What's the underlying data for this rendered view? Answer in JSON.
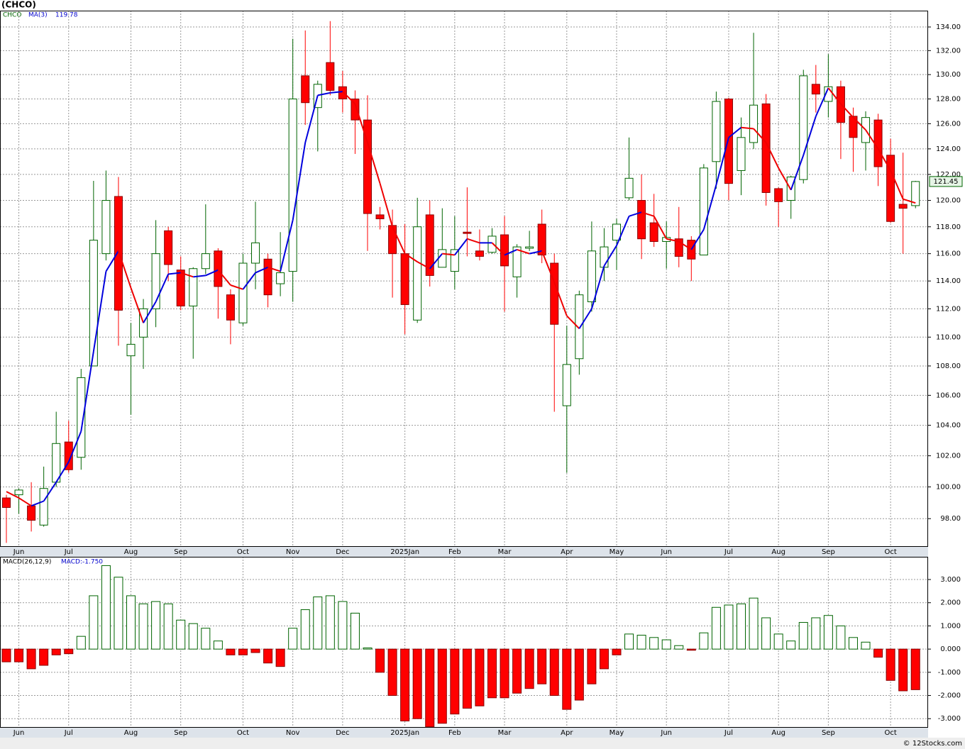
{
  "chart_data": [
    {
      "type": "candlestick",
      "title": "(CHCO)",
      "symbol": "CHCO",
      "ma_name": "MA(3)",
      "ma_value_label": "119.78",
      "last_label": "121.45",
      "categories": [
        null,
        "Jun",
        null,
        null,
        null,
        "Jul",
        null,
        null,
        null,
        null,
        "Aug",
        null,
        null,
        null,
        "Sep",
        null,
        null,
        null,
        null,
        "Oct",
        null,
        null,
        null,
        "Nov",
        null,
        null,
        null,
        "Dec",
        null,
        null,
        null,
        null,
        "2025Jan",
        null,
        null,
        null,
        "Feb",
        null,
        null,
        null,
        "Mar",
        null,
        null,
        null,
        null,
        "Apr",
        null,
        null,
        null,
        "May",
        null,
        null,
        null,
        "Jun",
        null,
        null,
        null,
        null,
        "Jul",
        null,
        null,
        null,
        "Aug",
        null,
        null,
        null,
        "Sep",
        null,
        null,
        null,
        null,
        "Oct",
        null,
        null
      ],
      "open": [
        99.3,
        99.5,
        98.8,
        97.6,
        100.3,
        102.9,
        101.9,
        108.0,
        116.0,
        120.3,
        108.7,
        110.0,
        112.0,
        117.7,
        114.8,
        112.2,
        114.9,
        116.2,
        113.0,
        111.0,
        115.3,
        115.6,
        113.8,
        114.7,
        129.9,
        127.3,
        131.0,
        129.0,
        128.0,
        126.3,
        118.9,
        118.1,
        116.0,
        111.2,
        118.9,
        115.0,
        114.7,
        117.6,
        116.2,
        116.1,
        117.4,
        114.3,
        116.4,
        118.2,
        115.3,
        105.3,
        108.5,
        112.5,
        115.0,
        117.0,
        120.2,
        120.0,
        118.3,
        116.9,
        117.1,
        117.0,
        115.9,
        123.0,
        128.0,
        122.3,
        124.5,
        127.6,
        120.9,
        120.0,
        121.6,
        129.2,
        127.8,
        129.0,
        126.6,
        124.5,
        126.3,
        123.5,
        119.7,
        119.6
      ],
      "high": [
        99.5,
        99.9,
        100.3,
        101.3,
        104.9,
        104.3,
        107.8,
        121.5,
        122.3,
        121.8,
        111.0,
        112.7,
        118.5,
        118.0,
        115.8,
        115.0,
        119.7,
        116.4,
        113.4,
        116.0,
        119.9,
        116.0,
        117.6,
        133.0,
        133.7,
        129.5,
        134.5,
        130.3,
        128.7,
        128.3,
        119.5,
        119.3,
        118.2,
        120.2,
        120.0,
        119.4,
        118.8,
        121.0,
        117.8,
        117.9,
        118.8,
        116.7,
        117.7,
        119.3,
        116.0,
        110.8,
        113.3,
        118.4,
        117.9,
        118.6,
        124.9,
        122.0,
        120.5,
        118.4,
        119.5,
        117.3,
        122.8,
        128.6,
        128.1,
        126.5,
        133.5,
        128.4,
        121.0,
        121.9,
        130.4,
        130.8,
        131.7,
        129.5,
        127.3,
        127.0,
        126.8,
        124.8,
        123.7,
        121.5
      ],
      "low": [
        96.5,
        98.3,
        97.2,
        97.5,
        100.0,
        100.9,
        101.1,
        108.0,
        115.5,
        109.4,
        104.7,
        107.8,
        110.7,
        114.0,
        111.9,
        108.5,
        114.5,
        111.3,
        109.5,
        110.8,
        113.4,
        112.1,
        112.9,
        112.5,
        125.9,
        123.8,
        128.3,
        126.9,
        123.6,
        116.2,
        117.8,
        112.8,
        110.2,
        111.0,
        113.6,
        115.0,
        113.4,
        115.8,
        115.5,
        116.0,
        111.8,
        112.8,
        116.2,
        115.3,
        104.9,
        100.9,
        107.4,
        111.8,
        114.0,
        114.8,
        120.0,
        115.6,
        116.5,
        114.9,
        115.0,
        114.0,
        115.9,
        120.9,
        120.0,
        120.4,
        124.0,
        119.6,
        118.0,
        118.6,
        121.3,
        126.9,
        126.5,
        123.2,
        122.2,
        122.3,
        121.1,
        118.3,
        116.0,
        119.4
      ],
      "close": [
        98.7,
        99.8,
        97.9,
        99.9,
        102.8,
        101.1,
        107.2,
        117.0,
        120.0,
        111.9,
        109.5,
        112.0,
        116.0,
        115.2,
        112.2,
        114.9,
        116.0,
        113.6,
        111.2,
        115.3,
        116.8,
        113.0,
        114.6,
        128.0,
        127.7,
        129.2,
        128.7,
        128.0,
        126.3,
        119.0,
        118.6,
        116.0,
        112.3,
        118.0,
        114.4,
        116.3,
        116.3,
        117.5,
        115.8,
        117.3,
        115.1,
        116.5,
        116.5,
        115.9,
        110.9,
        108.1,
        113.0,
        116.2,
        116.5,
        118.2,
        121.7,
        117.1,
        116.9,
        117.2,
        115.8,
        115.6,
        122.5,
        127.8,
        121.3,
        124.9,
        127.5,
        120.6,
        119.9,
        121.8,
        129.9,
        128.4,
        129.0,
        126.1,
        124.9,
        126.5,
        122.6,
        118.4,
        119.4,
        121.45
      ],
      "ma": [
        99.7,
        99.3,
        98.8,
        99.1,
        100.3,
        101.6,
        103.6,
        109.0,
        114.7,
        116.2,
        113.5,
        111.0,
        112.5,
        114.5,
        114.6,
        114.3,
        114.4,
        114.8,
        113.7,
        113.4,
        114.6,
        115.0,
        114.7,
        118.5,
        124.5,
        128.3,
        128.5,
        128.6,
        127.6,
        124.5,
        121.3,
        118.0,
        116.0,
        115.4,
        114.9,
        116.0,
        115.9,
        117.1,
        116.8,
        116.8,
        115.9,
        116.3,
        116.0,
        116.2,
        113.9,
        111.5,
        110.6,
        112.0,
        115.1,
        116.6,
        118.8,
        119.1,
        118.8,
        117.1,
        116.9,
        116.3,
        117.8,
        121.2,
        124.9,
        125.7,
        125.6,
        124.5,
        122.5,
        120.8,
        123.5,
        126.6,
        128.9,
        127.6,
        126.5,
        125.5,
        124.0,
        122.3,
        120.1,
        119.8
      ],
      "up_color": "#006400",
      "down_color": "#ff0000",
      "ma_up_color": "#0000dd",
      "ma_down_color": "#ee0000",
      "log": true,
      "ylim": [
        96.3,
        135.4
      ],
      "yticks": [
        {
          "value": 98,
          "label": "98.00"
        },
        {
          "value": 100,
          "label": "100.00"
        },
        {
          "value": 102,
          "label": "102.00"
        },
        {
          "value": 104,
          "label": "104.00"
        },
        {
          "value": 106,
          "label": "106.00"
        },
        {
          "value": 108,
          "label": "108.00"
        },
        {
          "value": 110,
          "label": "110.00"
        },
        {
          "value": 112,
          "label": "112.00"
        },
        {
          "value": 114,
          "label": "114.00"
        },
        {
          "value": 116,
          "label": "116.00"
        },
        {
          "value": 118,
          "label": "118.00"
        },
        {
          "value": 120,
          "label": "120.00"
        },
        {
          "value": 122,
          "label": "122.00"
        },
        {
          "value": 124,
          "label": "124.00"
        },
        {
          "value": 126,
          "label": "126.00"
        },
        {
          "value": 128,
          "label": "128.00"
        },
        {
          "value": 130,
          "label": "130.00"
        },
        {
          "value": 132,
          "label": "132.00"
        },
        {
          "value": 134,
          "label": "134.00"
        }
      ],
      "grid": true
    },
    {
      "type": "bar",
      "name": "MACD(26,12,9)",
      "value_label": "MACD:-1.750",
      "copyright": "© 12Stocks.com",
      "values": [
        -0.55,
        -0.55,
        -0.85,
        -0.7,
        -0.25,
        -0.2,
        0.55,
        2.3,
        3.6,
        3.1,
        2.3,
        1.95,
        2.05,
        1.95,
        1.25,
        1.1,
        0.9,
        0.35,
        -0.25,
        -0.25,
        -0.15,
        -0.6,
        -0.75,
        0.9,
        1.7,
        2.25,
        2.3,
        2.05,
        1.55,
        0.05,
        -1.0,
        -2.0,
        -3.1,
        -3.0,
        -3.35,
        -3.2,
        -2.8,
        -2.55,
        -2.45,
        -2.1,
        -2.1,
        -1.9,
        -1.7,
        -1.5,
        -2.0,
        -2.6,
        -2.2,
        -1.5,
        -0.85,
        -0.25,
        0.65,
        0.6,
        0.5,
        0.4,
        0.15,
        -0.05,
        0.7,
        1.8,
        1.9,
        1.95,
        2.2,
        1.35,
        0.65,
        0.35,
        1.15,
        1.35,
        1.45,
        1.0,
        0.5,
        0.3,
        -0.35,
        -1.35,
        -1.8,
        -1.75
      ],
      "up_color": "#006400",
      "down_color": "#ff0000",
      "ylim": [
        -3.36,
        3.98
      ],
      "yticks": [
        {
          "value": -3,
          "label": "-3.000"
        },
        {
          "value": -2,
          "label": "-2.000"
        },
        {
          "value": -1,
          "label": "-1.000"
        },
        {
          "value": 0,
          "label": "0.000"
        },
        {
          "value": 1,
          "label": "1.000"
        },
        {
          "value": 2,
          "label": "2.000"
        },
        {
          "value": 3,
          "label": "3.000"
        }
      ],
      "grid": true
    }
  ]
}
